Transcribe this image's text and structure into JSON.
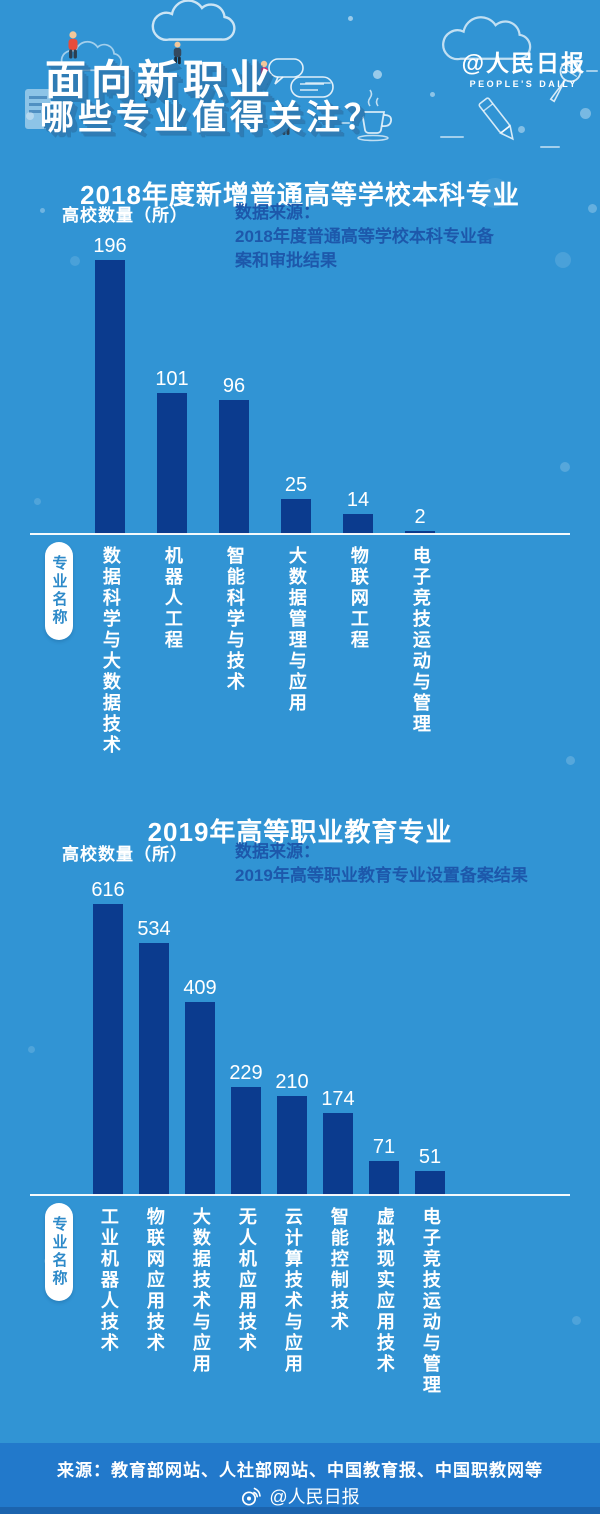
{
  "poster": {
    "title_line1": "面向新职业",
    "title_line2": "哪些专业值得关注？",
    "logo": {
      "handle": "@人民日报",
      "tagline": "PEOPLE'S DAILY"
    }
  },
  "chart_data": [
    {
      "type": "bar",
      "title": "2018年度新增普通高等学校本科专业",
      "ylabel": "高校数量（所）",
      "source_lines": [
        "数据来源：",
        "2018年度普通高等学校本科专业备",
        "案和审批结果"
      ],
      "categories": [
        "数据科学与大数据技术",
        "机器人工程",
        "智能科学与技术",
        "大数据管理与应用",
        "物联网工程",
        "电子竞技运动与管理"
      ],
      "values": [
        196,
        101,
        96,
        25,
        14,
        2
      ],
      "ylim": [
        0,
        200
      ],
      "grid": false,
      "legend": "none",
      "bar_color": "#0b3b8e",
      "xlabel_badge": "专业名称"
    },
    {
      "type": "bar",
      "title": "2019年高等职业教育专业",
      "ylabel": "高校数量（所）",
      "source_lines": [
        "数据来源：",
        "2019年高等职业教育专业设置备案结果"
      ],
      "categories": [
        "工业机器人技术",
        "物联网应用技术",
        "大数据技术与应用",
        "无人机应用技术",
        "云计算技术与应用",
        "智能控制技术",
        "虚拟现实应用技术",
        "电子竞技运动与管理"
      ],
      "values": [
        616,
        534,
        409,
        229,
        210,
        174,
        71,
        51
      ],
      "ylim": [
        0,
        650
      ],
      "grid": false,
      "legend": "none",
      "bar_color": "#0b3b8e",
      "xlabel_badge": "专业名称"
    }
  ],
  "footer": {
    "source": "来源：教育部网站、人社部网站、中国教育报、中国职教网等",
    "credit": "@人民日报"
  },
  "colors": {
    "background": "#3194d4",
    "bar": "#0b3b8e",
    "source_text": "#1d58ab",
    "footer_band": "#2279cb",
    "footer_strip": "#1c64ae",
    "badge_text": "#2e8ac9",
    "text": "#ffffff"
  }
}
